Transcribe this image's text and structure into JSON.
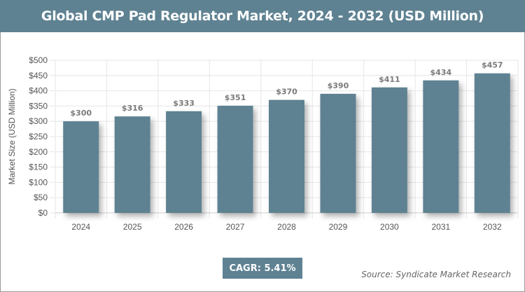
{
  "chart_data": {
    "type": "bar",
    "title": "Global CMP Pad Regulator Market, 2024 - 2032 (USD Million)",
    "xlabel": "",
    "ylabel": "Market Size (USD Million)",
    "categories": [
      "2024",
      "2025",
      "2026",
      "2027",
      "2028",
      "2029",
      "2030",
      "2031",
      "2032"
    ],
    "values": [
      300,
      316,
      333,
      351,
      370,
      390,
      411,
      434,
      457
    ],
    "data_labels": [
      "$300",
      "$316",
      "$333",
      "$351",
      "$370",
      "$390",
      "$411",
      "$434",
      "$457"
    ],
    "ylim": [
      0,
      500
    ],
    "yticks": [
      0,
      50,
      100,
      150,
      200,
      250,
      300,
      350,
      400,
      450,
      500
    ],
    "ytick_labels": [
      "$0",
      "$50",
      "$100",
      "$150",
      "$200",
      "$250",
      "$300",
      "$350",
      "$400",
      "$450",
      "$500"
    ],
    "grid": true,
    "bar_color": "#5f8292"
  },
  "cagr_label": "CAGR: 5.41%",
  "source": "Source: Syndicate Market Research"
}
